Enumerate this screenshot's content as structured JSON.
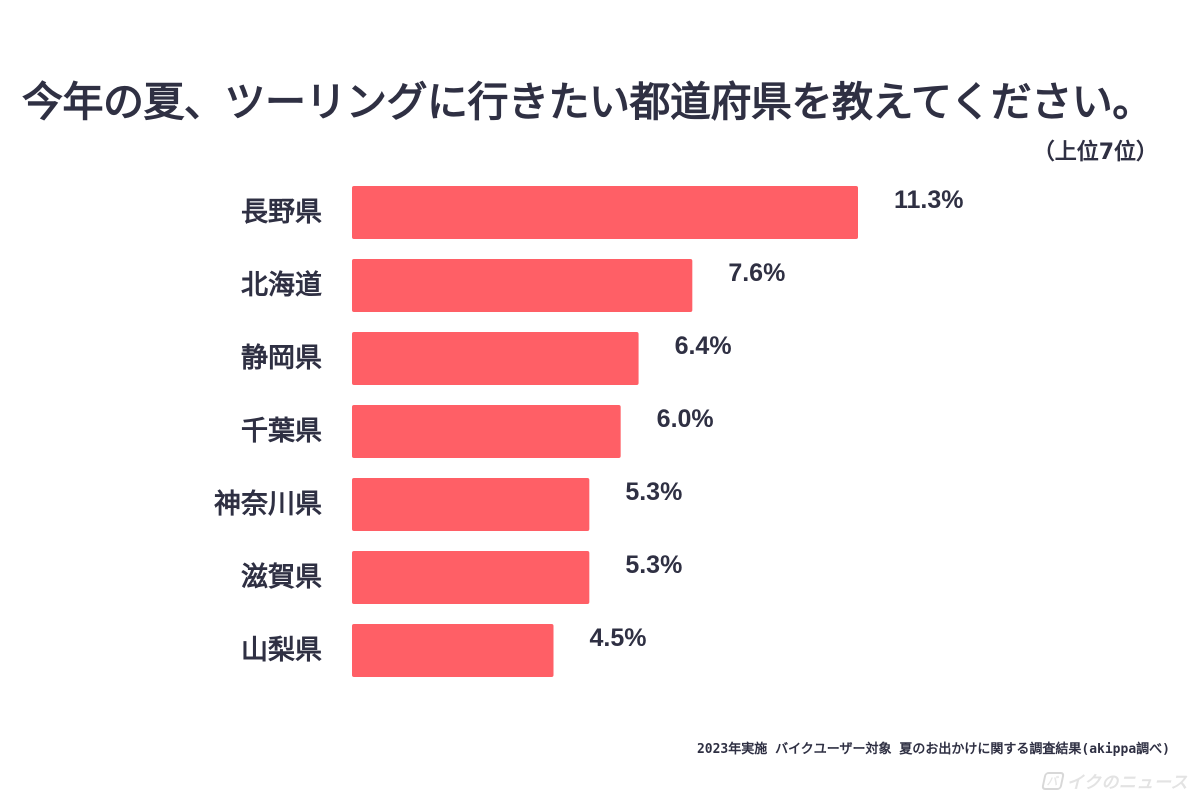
{
  "chart_data": {
    "type": "bar",
    "orientation": "horizontal",
    "title": "今年の夏、ツーリングに行きたい都道府県を教えてください。",
    "subtitle": "（上位7位）",
    "categories": [
      "長野県",
      "北海道",
      "静岡県",
      "千葉県",
      "神奈川県",
      "滋賀県",
      "山梨県"
    ],
    "values": [
      11.3,
      7.6,
      6.4,
      6.0,
      5.3,
      5.3,
      4.5
    ],
    "value_labels": [
      "11.3%",
      "7.6%",
      "6.4%",
      "6.0%",
      "5.3%",
      "5.3%",
      "4.5%"
    ],
    "unit": "%",
    "xlim": [
      0,
      11.3
    ],
    "grid": false,
    "legend": "none",
    "bar_color": "#ff5f66",
    "text_color": "#2f3043"
  },
  "footer": {
    "note": "2023年実施 バイクユーザー対象 夏のお出かけに関する調査結果(akippa調べ)"
  },
  "logo": {
    "badge": "バ",
    "text": "イクのニュース"
  }
}
